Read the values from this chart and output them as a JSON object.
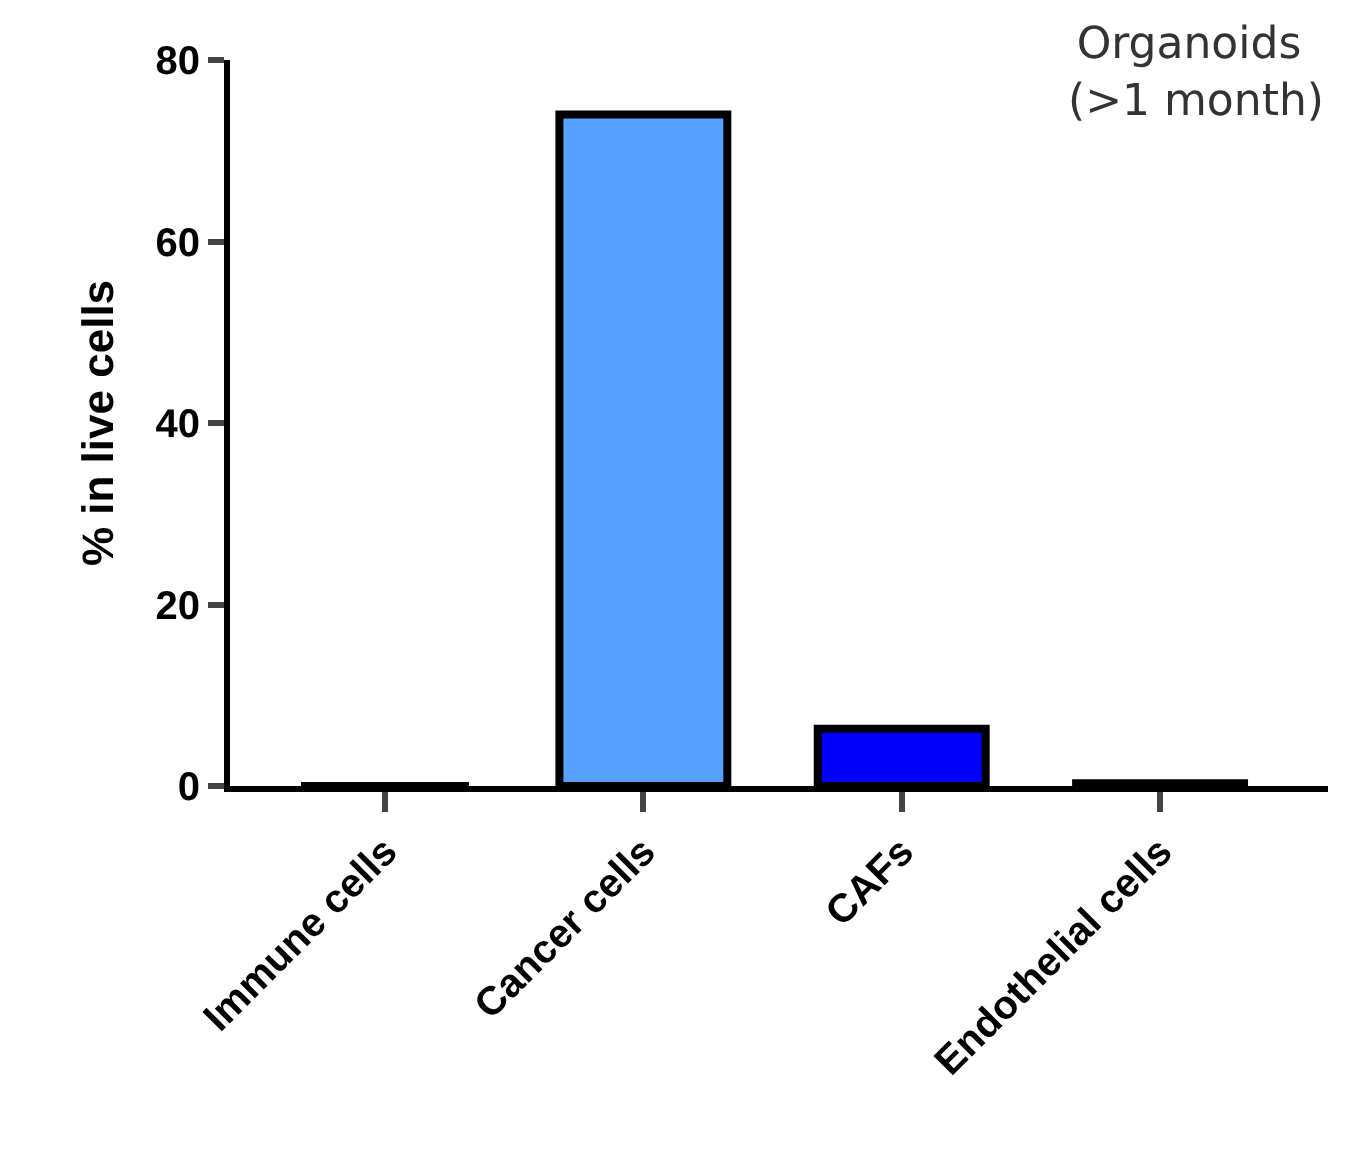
{
  "chart_data": {
    "type": "bar",
    "title": "Organoids\n (>1 month)",
    "ylabel": "% in live cells",
    "categories": [
      "Immune cells",
      "Cancer cells",
      "CAFs",
      "Endothelial cells"
    ],
    "values": [
      0,
      74,
      6.3,
      0.3
    ],
    "colors": [
      "#000000",
      "#56a0ff",
      "#0000ff",
      "#1a1aff"
    ],
    "ylim": [
      0,
      80
    ],
    "yticks": [
      0,
      20,
      40,
      60,
      80
    ]
  }
}
